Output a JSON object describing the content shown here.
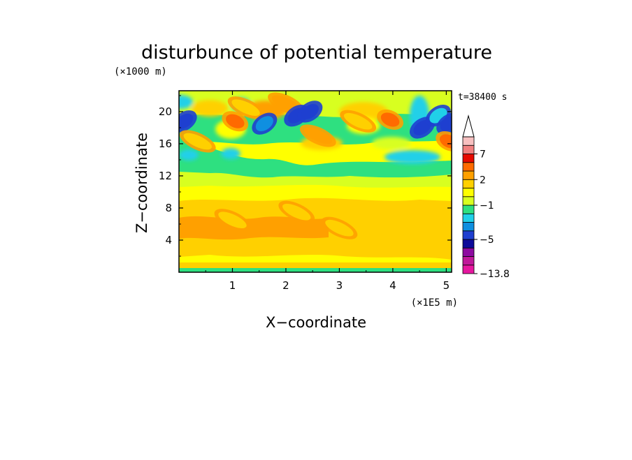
{
  "chart_data": {
    "type": "heatmap",
    "title": "disturbunce of potential temperature",
    "xlabel": "X−coordinate",
    "ylabel": "Z−coordinate",
    "x_unit": "(×1E5 m)",
    "y_unit": "(×1000 m)",
    "time_label": "t=38400 s",
    "xlim": [
      0,
      5.1
    ],
    "ylim": [
      0,
      22.6
    ],
    "x_ticks": [
      1,
      2,
      3,
      4,
      5
    ],
    "y_ticks": [
      4,
      8,
      12,
      16,
      20
    ],
    "colorbar": {
      "levels": [
        -13.8,
        -11,
        -9,
        -7,
        -5,
        -4,
        -3,
        -2,
        -1,
        0,
        1,
        2,
        3,
        5,
        7,
        9,
        11
      ],
      "colors": [
        "#e6179f",
        "#c0189a",
        "#8d0aa0",
        "#0d0a9a",
        "#1e3fd0",
        "#0f8fe0",
        "#20d0e8",
        "#2ee080",
        "#d8ff20",
        "#ffff00",
        "#ffd000",
        "#ffa000",
        "#ff6a00",
        "#e60a00",
        "#f08080",
        "#f7c0c0"
      ],
      "tick_labels": [
        "7",
        "2",
        "−1",
        "−5",
        "−13.8"
      ],
      "tick_values": [
        7,
        2,
        -1,
        -5,
        -13.8
      ],
      "extend": "max"
    },
    "features": [
      {
        "x": 0.1,
        "z": 18.8,
        "value": -4.5
      },
      {
        "x": 0.35,
        "z": 16.3,
        "value": 1.5
      },
      {
        "x": 1.05,
        "z": 18.8,
        "value": 3.0
      },
      {
        "x": 1.25,
        "z": 20.5,
        "value": 1.5
      },
      {
        "x": 1.6,
        "z": 18.5,
        "value": -4.0
      },
      {
        "x": 2.0,
        "z": 21.0,
        "value": 2.0
      },
      {
        "x": 2.2,
        "z": 19.5,
        "value": -5.0
      },
      {
        "x": 2.45,
        "z": 20.0,
        "value": -5.0
      },
      {
        "x": 2.6,
        "z": 17.0,
        "value": 2.0
      },
      {
        "x": 3.35,
        "z": 18.8,
        "value": 1.5
      },
      {
        "x": 3.95,
        "z": 19.0,
        "value": 3.5
      },
      {
        "x": 4.55,
        "z": 18.0,
        "value": -4.5
      },
      {
        "x": 4.85,
        "z": 19.5,
        "value": -3.0
      },
      {
        "x": 5.05,
        "z": 18.5,
        "value": -5.0
      },
      {
        "x": 5.05,
        "z": 16.3,
        "value": 3.0
      },
      {
        "x": 1.0,
        "z": 6.5,
        "value": 1.8
      },
      {
        "x": 2.2,
        "z": 7.5,
        "value": 1.8
      },
      {
        "x": 3.0,
        "z": 5.5,
        "value": 1.6
      }
    ]
  }
}
